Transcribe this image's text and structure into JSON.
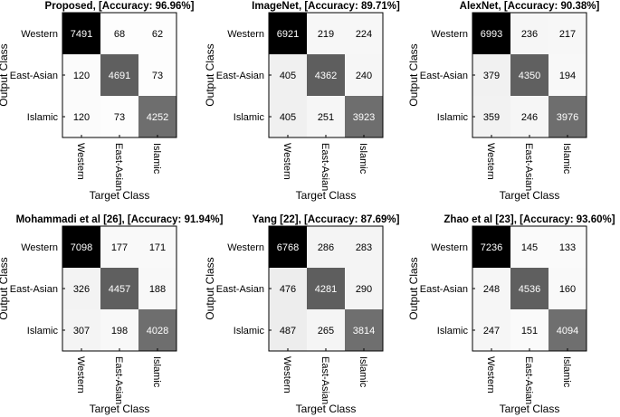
{
  "figure": {
    "chart_data": [
      {
        "type": "heatmap",
        "title": "Proposed, [Accuracy: 96.96%]",
        "xlabel": "Target Class",
        "ylabel": "Output Class",
        "x_categories": [
          "Western",
          "East-Asian",
          "Islamic"
        ],
        "y_categories": [
          "Western",
          "East-Asian",
          "Islamic"
        ],
        "values": [
          [
            7491,
            68,
            62
          ],
          [
            120,
            4691,
            73
          ],
          [
            120,
            73,
            4252
          ]
        ]
      },
      {
        "type": "heatmap",
        "title": "ImageNet, [Accuracy: 89.71%]",
        "xlabel": "Target Class",
        "ylabel": "Output Class",
        "x_categories": [
          "Western",
          "East-Asian",
          "Islamic"
        ],
        "y_categories": [
          "Western",
          "East-Asian",
          "Islamic"
        ],
        "values": [
          [
            6921,
            219,
            224
          ],
          [
            405,
            4362,
            240
          ],
          [
            405,
            251,
            3923
          ]
        ]
      },
      {
        "type": "heatmap",
        "title": "AlexNet, [Accuracy: 90.38%]",
        "xlabel": "Target Class",
        "ylabel": "Output Class",
        "x_categories": [
          "Western",
          "East-Asian",
          "Islamic"
        ],
        "y_categories": [
          "Western",
          "East-Asian",
          "Islamic"
        ],
        "values": [
          [
            6993,
            236,
            217
          ],
          [
            379,
            4350,
            194
          ],
          [
            359,
            246,
            3976
          ]
        ]
      },
      {
        "type": "heatmap",
        "title": "Mohammadi et al [26], [Accuracy: 91.94%]",
        "xlabel": "Target Class",
        "ylabel": "Output Class",
        "x_categories": [
          "Western",
          "East-Asian",
          "Islamic"
        ],
        "y_categories": [
          "Western",
          "East-Asian",
          "Islamic"
        ],
        "values": [
          [
            7098,
            177,
            171
          ],
          [
            326,
            4457,
            188
          ],
          [
            307,
            198,
            4028
          ]
        ]
      },
      {
        "type": "heatmap",
        "title": "Yang [22], [Accuracy: 87.69%]",
        "xlabel": "Target Class",
        "ylabel": "Output Class",
        "x_categories": [
          "Western",
          "East-Asian",
          "Islamic"
        ],
        "y_categories": [
          "Western",
          "East-Asian",
          "Islamic"
        ],
        "values": [
          [
            6768,
            286,
            283
          ],
          [
            476,
            4281,
            290
          ],
          [
            487,
            265,
            3814
          ]
        ]
      },
      {
        "type": "heatmap",
        "title": "Zhao et al [23], [Accuracy: 93.60%]",
        "xlabel": "Target Class",
        "ylabel": "Output Class",
        "x_categories": [
          "Western",
          "East-Asian",
          "Islamic"
        ],
        "y_categories": [
          "Western",
          "East-Asian",
          "Islamic"
        ],
        "values": [
          [
            7236,
            145,
            133
          ],
          [
            248,
            4536,
            160
          ],
          [
            247,
            151,
            4094
          ]
        ]
      }
    ]
  }
}
